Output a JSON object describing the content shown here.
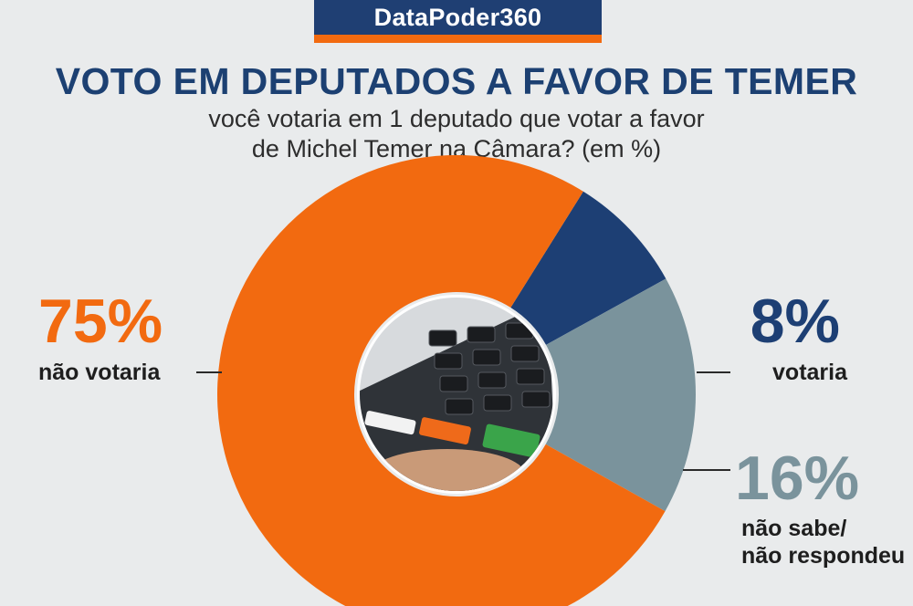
{
  "brand": "DataPoder360",
  "colors": {
    "brand_bg": "#1f3f73",
    "accent": "#f26a10",
    "title": "#1c4072",
    "grey": "#7a939c"
  },
  "chart_data": {
    "type": "pie",
    "title": "VOTO EM DEPUTADOS A FAVOR DE TEMER",
    "subtitle": [
      "você votaria em 1 deputado que votar a favor",
      "de Michel Temer na Câmara? (em %)"
    ],
    "unit": "%",
    "slices": [
      {
        "label": "votaria",
        "value": 8,
        "display": "8%",
        "color": "#1d3f74"
      },
      {
        "label_lines": [
          "não sabe/",
          "não respondeu"
        ],
        "value": 16,
        "display": "16%",
        "color": "#7a939c"
      },
      {
        "label": "não votaria",
        "value": 75,
        "display": "75%",
        "color": "#f26a10"
      }
    ]
  }
}
